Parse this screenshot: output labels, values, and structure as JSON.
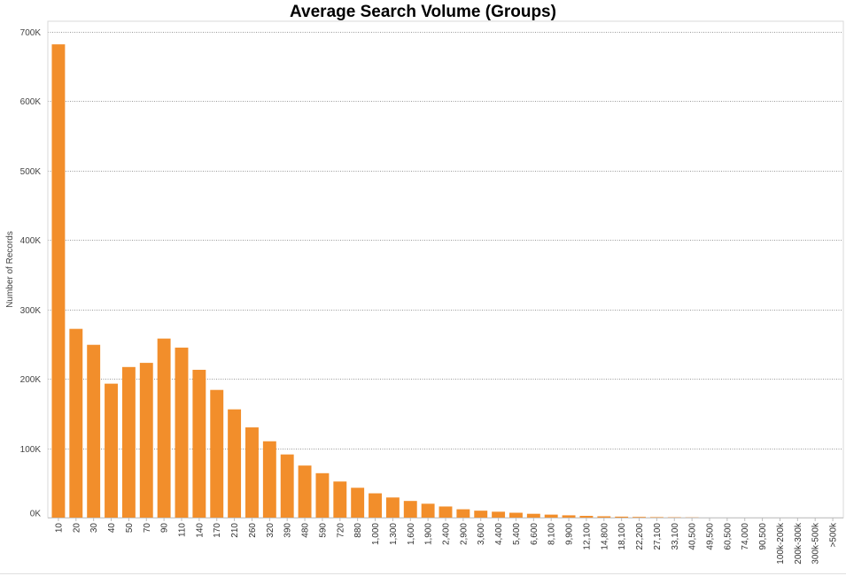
{
  "chart_data": {
    "type": "bar",
    "title": "Average Search Volume (Groups)",
    "xlabel": "",
    "ylabel": "Number of Records",
    "ylim": [
      0,
      700000
    ],
    "yticks": [
      0,
      100000,
      200000,
      300000,
      400000,
      500000,
      600000,
      700000
    ],
    "ytick_labels": [
      "0K",
      "100K",
      "200K",
      "300K",
      "400K",
      "500K",
      "600K",
      "700K"
    ],
    "grid": "horizontal dotted",
    "bar_color": "#f28e2b",
    "categories": [
      "10",
      "20",
      "30",
      "40",
      "50",
      "70",
      "90",
      "110",
      "140",
      "170",
      "210",
      "260",
      "320",
      "390",
      "480",
      "590",
      "720",
      "880",
      "1,000",
      "1,300",
      "1,600",
      "1,900",
      "2,400",
      "2,900",
      "3,600",
      "4,400",
      "5,400",
      "6,600",
      "8,100",
      "9,900",
      "12,100",
      "14,800",
      "18,100",
      "22,200",
      "27,100",
      "33,100",
      "40,500",
      "49,500",
      "60,500",
      "74,000",
      "90,500",
      "100k-200k",
      "200k-300k",
      "300k-500k",
      ">500k"
    ],
    "values": [
      682000,
      272000,
      249000,
      193000,
      217000,
      223000,
      258000,
      245000,
      213000,
      184000,
      156000,
      130000,
      110000,
      91000,
      75000,
      64000,
      52000,
      43000,
      35000,
      29000,
      24000,
      20000,
      16000,
      12000,
      10000,
      8500,
      7000,
      5500,
      4300,
      3300,
      2500,
      1900,
      1400,
      1000,
      700,
      500,
      300,
      0,
      0,
      0,
      0,
      0,
      0,
      0,
      0
    ]
  }
}
